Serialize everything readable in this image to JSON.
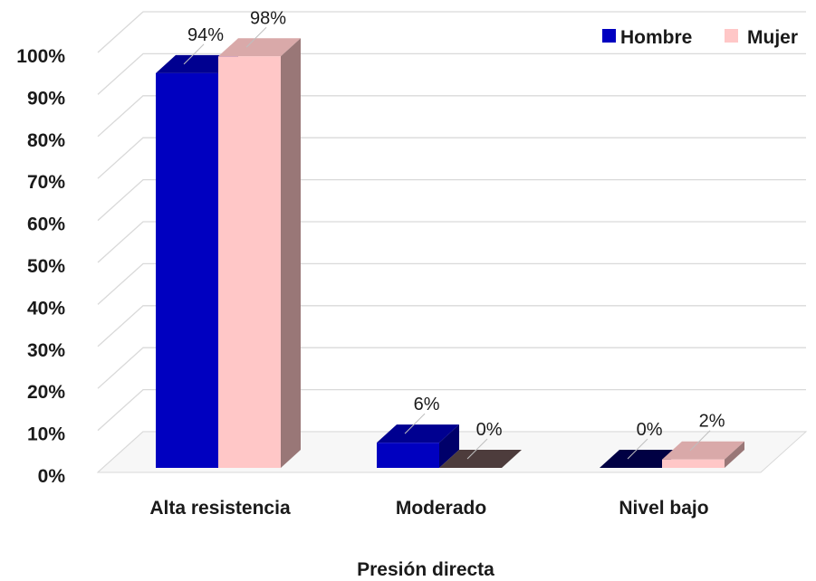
{
  "chart_data": {
    "type": "bar",
    "style": "3d-clustered-column",
    "categories": [
      "Alta resistencia",
      "Moderado",
      "Nivel bajo"
    ],
    "series": [
      {
        "name": "Hombre",
        "values": [
          94,
          6,
          0
        ],
        "labels": [
          "94%",
          "6%",
          "0%"
        ],
        "color": "#0000c0"
      },
      {
        "name": "Mujer",
        "values": [
          98,
          0,
          2
        ],
        "labels": [
          "98%",
          "0%",
          "2%"
        ],
        "color": "#ffc7c7"
      }
    ],
    "yticks": [
      "0%",
      "10%",
      "20%",
      "30%",
      "40%",
      "50%",
      "60%",
      "70%",
      "80%",
      "90%",
      "100%"
    ],
    "ylim": [
      0,
      100
    ],
    "xlabel": "Presión directa",
    "ylabel": "",
    "title": "",
    "grid": true,
    "legend_position": "top-right"
  }
}
